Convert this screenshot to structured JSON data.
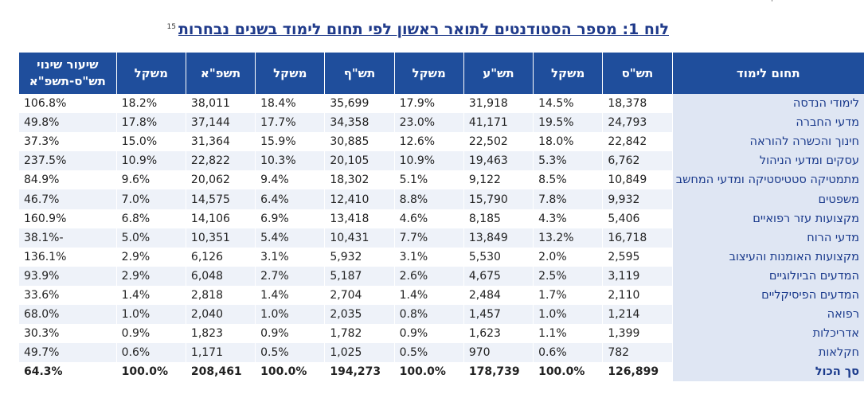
{
  "caption": {
    "title": "לוח 1: מספר הסטודנטים לתואר ראשון לפי תחום לימוד בשנים נבחרות",
    "footnote": "15"
  },
  "corner_mark": "'",
  "headers": [
    "תחום לימוד",
    "תש\"ס",
    "משקל",
    "תש\"ע",
    "משקל",
    "תש\"ף",
    "משקל",
    "תשפ\"א",
    "משקל",
    "שיעור שינוי תש\"ס-תשפ\"א"
  ],
  "rows": [
    [
      "לימודי הנדסה",
      "18,378",
      "14.5%",
      "31,918",
      "17.9%",
      "35,699",
      "18.4%",
      "38,011",
      "18.2%",
      "106.8%"
    ],
    [
      "מדעי החברה",
      "24,793",
      "19.5%",
      "41,171",
      "23.0%",
      "34,358",
      "17.7%",
      "37,144",
      "17.8%",
      "49.8%"
    ],
    [
      "חינוך והכשרה להוראה",
      "22,842",
      "18.0%",
      "22,502",
      "12.6%",
      "30,885",
      "15.9%",
      "31,364",
      "15.0%",
      "37.3%"
    ],
    [
      "עסקים ומדעי הניהול",
      "6,762",
      "5.3%",
      "19,463",
      "10.9%",
      "20,105",
      "10.3%",
      "22,822",
      "10.9%",
      "237.5%"
    ],
    [
      "מתמטיקה סטטיסטיקה ומדעי המחשב",
      "10,849",
      "8.5%",
      "9,122",
      "5.1%",
      "18,302",
      "9.4%",
      "20,062",
      "9.6%",
      "84.9%"
    ],
    [
      "משפטים",
      "9,932",
      "7.8%",
      "15,790",
      "8.8%",
      "12,410",
      "6.4%",
      "14,575",
      "7.0%",
      "46.7%"
    ],
    [
      "מקצועות עזר רפואיים",
      "5,406",
      "4.3%",
      "8,185",
      "4.6%",
      "13,418",
      "6.9%",
      "14,106",
      "6.8%",
      "160.9%"
    ],
    [
      "מדעי הרוח",
      "16,718",
      "13.2%",
      "13,849",
      "7.7%",
      "10,431",
      "5.4%",
      "10,351",
      "5.0%",
      "-38.1%"
    ],
    [
      "מקצועות האומנות והעיצוב",
      "2,595",
      "2.0%",
      "5,530",
      "3.1%",
      "5,932",
      "3.1%",
      "6,126",
      "2.9%",
      "136.1%"
    ],
    [
      "המדעים הביולוגיים",
      "3,119",
      "2.5%",
      "4,675",
      "2.6%",
      "5,187",
      "2.7%",
      "6,048",
      "2.9%",
      "93.9%"
    ],
    [
      "המדעים הפיסיקליים",
      "2,110",
      "1.7%",
      "2,484",
      "1.4%",
      "2,704",
      "1.4%",
      "2,818",
      "1.4%",
      "33.6%"
    ],
    [
      "רפואה",
      "1,214",
      "1.0%",
      "1,457",
      "0.8%",
      "2,035",
      "1.0%",
      "2,040",
      "1.0%",
      "68.0%"
    ],
    [
      "אדריכלות",
      "1,399",
      "1.1%",
      "1,623",
      "0.9%",
      "1,782",
      "0.9%",
      "1,823",
      "0.9%",
      "30.3%"
    ],
    [
      "חקלאות",
      "782",
      "0.6%",
      "970",
      "0.5%",
      "1,025",
      "0.5%",
      "1,171",
      "0.6%",
      "49.7%"
    ],
    [
      "סך הכול",
      "126,899",
      "100.0%",
      "178,739",
      "100.0%",
      "194,273",
      "100.0%",
      "208,461",
      "100.0%",
      "64.3%"
    ]
  ],
  "colors": {
    "header_bg": "#1f4e9c",
    "field_bg": "#dfe6f3",
    "title": "#1f3a8a"
  }
}
